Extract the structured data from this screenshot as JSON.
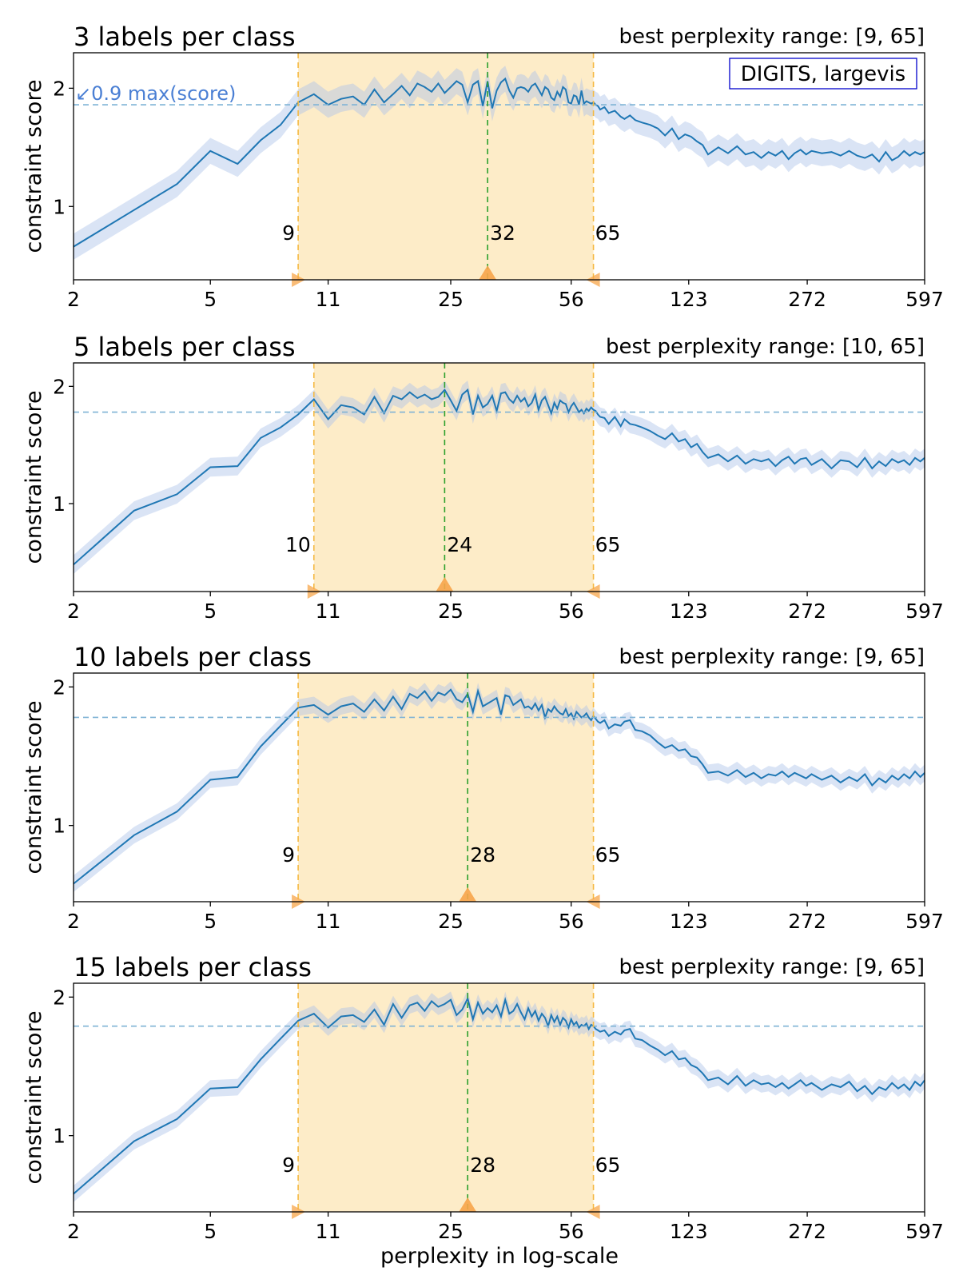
{
  "figure": {
    "xlabel": "perplexity in log-scale",
    "ylabel": "constraint score",
    "legend_box": "DIGITS, largevis",
    "threshold_annotation": "↙0.9 max(score)",
    "x_ticks": [
      "2",
      "5",
      "11",
      "25",
      "56",
      "123",
      "272",
      "597"
    ],
    "colors": {
      "line": "#1f77b4",
      "band": "#aec3e8",
      "best_region": "#fdecc8",
      "range_line": "#f5b942",
      "best_line": "#2ca02c",
      "threshold_line": "#7fb3d5",
      "marker": "#f7a54a",
      "annotation": "#4a7fd4",
      "legend_border": "#0000cc"
    }
  },
  "chart_data": [
    {
      "type": "line",
      "title": "3 labels per class",
      "range_text": "best perplexity range: [9, 65]",
      "range": [
        9,
        65
      ],
      "best": 32,
      "range_labels": [
        "9",
        "32",
        "65"
      ],
      "threshold": 1.86,
      "x_scale": "log",
      "xlim": [
        2,
        597
      ],
      "ylim": [
        0.38,
        2.3
      ],
      "y_ticks": [
        "1",
        "2"
      ],
      "series": [
        {
          "x": [
            2,
            3,
            4,
            5,
            6,
            7,
            8,
            9,
            10,
            11,
            12,
            13,
            14,
            15,
            16,
            17,
            18,
            19,
            20,
            21,
            22,
            23,
            24,
            25,
            26,
            27,
            28,
            29,
            30,
            31,
            32,
            33,
            34,
            35,
            36,
            37,
            38,
            39,
            40,
            41,
            42,
            43,
            44,
            45,
            46,
            47,
            48,
            49,
            50,
            51,
            52,
            53,
            54,
            55,
            56,
            57,
            58,
            59,
            60,
            61,
            62,
            63,
            64,
            65,
            66,
            67,
            68,
            70,
            72,
            75,
            78,
            80,
            83,
            86,
            90,
            95,
            100,
            105,
            110,
            115,
            120,
            125,
            130,
            135,
            140,
            150,
            160,
            170,
            180,
            190,
            200,
            210,
            220,
            230,
            240,
            250,
            260,
            270,
            280,
            300,
            320,
            340,
            360,
            380,
            400,
            420,
            440,
            460,
            480,
            500,
            520,
            540,
            560,
            580,
            597
          ],
          "values": [
            0.66,
            0.97,
            1.19,
            1.47,
            1.36,
            1.56,
            1.69,
            1.88,
            1.95,
            1.86,
            1.91,
            1.93,
            1.86,
            1.99,
            1.88,
            1.95,
            2.02,
            1.94,
            2.04,
            2.01,
            1.97,
            2.04,
            1.96,
            2.01,
            2.06,
            2.03,
            1.88,
            2.03,
            2.06,
            1.85,
            2.06,
            1.83,
            1.98,
            2.05,
            2.08,
            1.98,
            1.92,
            2.0,
            2.01,
            2.0,
            1.97,
            2.02,
            2.04,
            1.99,
            1.94,
            2.01,
            1.99,
            1.92,
            1.9,
            1.97,
            1.93,
            2.01,
            1.99,
            1.88,
            1.87,
            1.94,
            1.93,
            1.86,
            1.98,
            1.87,
            1.89,
            1.88,
            1.87,
            1.88,
            1.86,
            1.85,
            1.82,
            1.84,
            1.79,
            1.81,
            1.76,
            1.74,
            1.77,
            1.73,
            1.71,
            1.69,
            1.66,
            1.6,
            1.66,
            1.57,
            1.61,
            1.59,
            1.55,
            1.52,
            1.44,
            1.5,
            1.45,
            1.51,
            1.44,
            1.46,
            1.41,
            1.46,
            1.43,
            1.47,
            1.4,
            1.45,
            1.48,
            1.44,
            1.47,
            1.45,
            1.46,
            1.43,
            1.47,
            1.43,
            1.41,
            1.44,
            1.38,
            1.46,
            1.39,
            1.42,
            1.47,
            1.43,
            1.46,
            1.44,
            1.46
          ],
          "band": 0.11
        }
      ]
    },
    {
      "type": "line",
      "title": "5 labels per class",
      "range_text": "best perplexity range: [10, 65]",
      "range": [
        10,
        65
      ],
      "best": 24,
      "range_labels": [
        "10",
        "24",
        "65"
      ],
      "threshold": 1.78,
      "x_scale": "log",
      "xlim": [
        2,
        597
      ],
      "ylim": [
        0.25,
        2.2
      ],
      "y_ticks": [
        "1",
        "2"
      ],
      "series": [
        {
          "x": [
            2,
            3,
            4,
            5,
            6,
            7,
            8,
            9,
            10,
            11,
            12,
            13,
            14,
            15,
            16,
            17,
            18,
            19,
            20,
            21,
            22,
            23,
            24,
            25,
            26,
            27,
            28,
            29,
            30,
            31,
            32,
            33,
            34,
            35,
            36,
            37,
            38,
            39,
            40,
            41,
            42,
            43,
            44,
            45,
            46,
            47,
            48,
            49,
            50,
            51,
            52,
            53,
            54,
            55,
            56,
            57,
            58,
            59,
            60,
            61,
            62,
            63,
            64,
            65,
            66,
            67,
            68,
            70,
            72,
            75,
            78,
            80,
            83,
            86,
            90,
            95,
            100,
            105,
            110,
            115,
            120,
            125,
            130,
            135,
            140,
            150,
            160,
            170,
            180,
            190,
            200,
            210,
            220,
            230,
            240,
            250,
            260,
            270,
            280,
            300,
            320,
            340,
            360,
            380,
            400,
            420,
            440,
            460,
            480,
            500,
            520,
            540,
            560,
            580,
            597
          ],
          "values": [
            0.48,
            0.94,
            1.08,
            1.31,
            1.32,
            1.56,
            1.65,
            1.76,
            1.89,
            1.72,
            1.84,
            1.82,
            1.76,
            1.91,
            1.77,
            1.92,
            1.89,
            1.95,
            1.9,
            1.93,
            1.89,
            1.91,
            1.97,
            1.88,
            1.79,
            1.93,
            1.97,
            1.76,
            1.92,
            1.82,
            1.85,
            1.92,
            1.79,
            1.94,
            1.95,
            1.89,
            1.86,
            1.92,
            1.87,
            1.9,
            1.83,
            1.86,
            1.93,
            1.8,
            1.88,
            1.91,
            1.84,
            1.77,
            1.86,
            1.81,
            1.88,
            1.86,
            1.85,
            1.78,
            1.83,
            1.86,
            1.82,
            1.78,
            1.8,
            1.77,
            1.81,
            1.79,
            1.82,
            1.8,
            1.79,
            1.76,
            1.74,
            1.73,
            1.68,
            1.74,
            1.66,
            1.72,
            1.68,
            1.67,
            1.65,
            1.62,
            1.58,
            1.55,
            1.6,
            1.53,
            1.55,
            1.48,
            1.51,
            1.44,
            1.39,
            1.42,
            1.36,
            1.41,
            1.34,
            1.38,
            1.36,
            1.38,
            1.32,
            1.37,
            1.4,
            1.34,
            1.38,
            1.39,
            1.33,
            1.38,
            1.3,
            1.37,
            1.36,
            1.31,
            1.39,
            1.3,
            1.36,
            1.32,
            1.38,
            1.35,
            1.37,
            1.33,
            1.39,
            1.36,
            1.39
          ],
          "band": 0.08
        }
      ]
    },
    {
      "type": "line",
      "title": "10 labels per class",
      "range_text": "best perplexity range: [9, 65]",
      "range": [
        9,
        65
      ],
      "best": 28,
      "range_labels": [
        "9",
        "28",
        "65"
      ],
      "threshold": 1.78,
      "x_scale": "log",
      "xlim": [
        2,
        597
      ],
      "ylim": [
        0.45,
        2.1
      ],
      "y_ticks": [
        "1",
        "2"
      ],
      "series": [
        {
          "x": [
            2,
            3,
            4,
            5,
            6,
            7,
            8,
            9,
            10,
            11,
            12,
            13,
            14,
            15,
            16,
            17,
            18,
            19,
            20,
            21,
            22,
            23,
            24,
            25,
            26,
            27,
            28,
            29,
            30,
            31,
            32,
            33,
            34,
            35,
            36,
            37,
            38,
            39,
            40,
            41,
            42,
            43,
            44,
            45,
            46,
            47,
            48,
            49,
            50,
            51,
            52,
            53,
            54,
            55,
            56,
            57,
            58,
            59,
            60,
            61,
            62,
            63,
            64,
            65,
            66,
            67,
            68,
            70,
            72,
            75,
            78,
            80,
            83,
            86,
            90,
            95,
            100,
            105,
            110,
            115,
            120,
            125,
            130,
            135,
            140,
            150,
            160,
            170,
            180,
            190,
            200,
            210,
            220,
            230,
            240,
            250,
            260,
            270,
            280,
            300,
            320,
            340,
            360,
            380,
            400,
            420,
            440,
            460,
            480,
            500,
            520,
            540,
            560,
            580,
            597
          ],
          "values": [
            0.58,
            0.93,
            1.1,
            1.33,
            1.35,
            1.57,
            1.72,
            1.85,
            1.87,
            1.8,
            1.86,
            1.88,
            1.82,
            1.91,
            1.83,
            1.93,
            1.84,
            1.95,
            1.92,
            1.97,
            1.9,
            1.96,
            1.94,
            1.98,
            1.91,
            1.89,
            1.95,
            1.82,
            1.97,
            1.86,
            1.88,
            1.9,
            1.92,
            1.8,
            1.94,
            1.93,
            1.87,
            1.89,
            1.91,
            1.85,
            1.86,
            1.84,
            1.88,
            1.83,
            1.87,
            1.78,
            1.84,
            1.82,
            1.86,
            1.83,
            1.81,
            1.8,
            1.84,
            1.79,
            1.81,
            1.77,
            1.82,
            1.8,
            1.78,
            1.79,
            1.81,
            1.78,
            1.76,
            1.79,
            1.77,
            1.75,
            1.74,
            1.76,
            1.7,
            1.73,
            1.72,
            1.75,
            1.76,
            1.69,
            1.68,
            1.65,
            1.6,
            1.56,
            1.58,
            1.54,
            1.55,
            1.5,
            1.49,
            1.44,
            1.38,
            1.39,
            1.36,
            1.4,
            1.35,
            1.38,
            1.34,
            1.37,
            1.36,
            1.39,
            1.35,
            1.38,
            1.36,
            1.34,
            1.37,
            1.33,
            1.36,
            1.31,
            1.35,
            1.32,
            1.37,
            1.29,
            1.34,
            1.31,
            1.36,
            1.33,
            1.37,
            1.34,
            1.39,
            1.35,
            1.38
          ],
          "band": 0.06
        }
      ]
    },
    {
      "type": "line",
      "title": "15 labels per class",
      "range_text": "best perplexity range: [9, 65]",
      "range": [
        9,
        65
      ],
      "best": 28,
      "range_labels": [
        "9",
        "28",
        "65"
      ],
      "threshold": 1.79,
      "x_scale": "log",
      "xlim": [
        2,
        597
      ],
      "ylim": [
        0.45,
        2.1
      ],
      "y_ticks": [
        "1",
        "2"
      ],
      "series": [
        {
          "x": [
            2,
            3,
            4,
            5,
            6,
            7,
            8,
            9,
            10,
            11,
            12,
            13,
            14,
            15,
            16,
            17,
            18,
            19,
            20,
            21,
            22,
            23,
            24,
            25,
            26,
            27,
            28,
            29,
            30,
            31,
            32,
            33,
            34,
            35,
            36,
            37,
            38,
            39,
            40,
            41,
            42,
            43,
            44,
            45,
            46,
            47,
            48,
            49,
            50,
            51,
            52,
            53,
            54,
            55,
            56,
            57,
            58,
            59,
            60,
            61,
            62,
            63,
            64,
            65,
            66,
            67,
            68,
            70,
            72,
            75,
            78,
            80,
            83,
            86,
            90,
            95,
            100,
            105,
            110,
            115,
            120,
            125,
            130,
            135,
            140,
            150,
            160,
            170,
            180,
            190,
            200,
            210,
            220,
            230,
            240,
            250,
            260,
            270,
            280,
            300,
            320,
            340,
            360,
            380,
            400,
            420,
            440,
            460,
            480,
            500,
            520,
            540,
            560,
            580,
            597
          ],
          "values": [
            0.58,
            0.96,
            1.12,
            1.34,
            1.35,
            1.55,
            1.7,
            1.83,
            1.88,
            1.78,
            1.86,
            1.87,
            1.82,
            1.91,
            1.8,
            1.95,
            1.85,
            1.94,
            1.96,
            1.9,
            1.97,
            1.93,
            1.95,
            1.98,
            1.87,
            1.91,
            1.99,
            1.84,
            1.96,
            1.88,
            1.92,
            1.89,
            1.94,
            1.86,
            1.98,
            1.88,
            1.9,
            1.95,
            1.89,
            1.84,
            1.92,
            1.86,
            1.9,
            1.83,
            1.88,
            1.85,
            1.79,
            1.87,
            1.82,
            1.86,
            1.8,
            1.85,
            1.83,
            1.78,
            1.84,
            1.8,
            1.82,
            1.78,
            1.8,
            1.79,
            1.81,
            1.77,
            1.8,
            1.79,
            1.77,
            1.76,
            1.75,
            1.76,
            1.72,
            1.75,
            1.73,
            1.76,
            1.77,
            1.7,
            1.69,
            1.65,
            1.62,
            1.58,
            1.61,
            1.55,
            1.56,
            1.51,
            1.49,
            1.45,
            1.4,
            1.42,
            1.37,
            1.43,
            1.36,
            1.4,
            1.37,
            1.38,
            1.35,
            1.38,
            1.34,
            1.37,
            1.4,
            1.36,
            1.38,
            1.33,
            1.37,
            1.35,
            1.39,
            1.32,
            1.36,
            1.3,
            1.35,
            1.33,
            1.38,
            1.34,
            1.37,
            1.33,
            1.39,
            1.36,
            1.4
          ],
          "band": 0.06
        }
      ]
    }
  ]
}
